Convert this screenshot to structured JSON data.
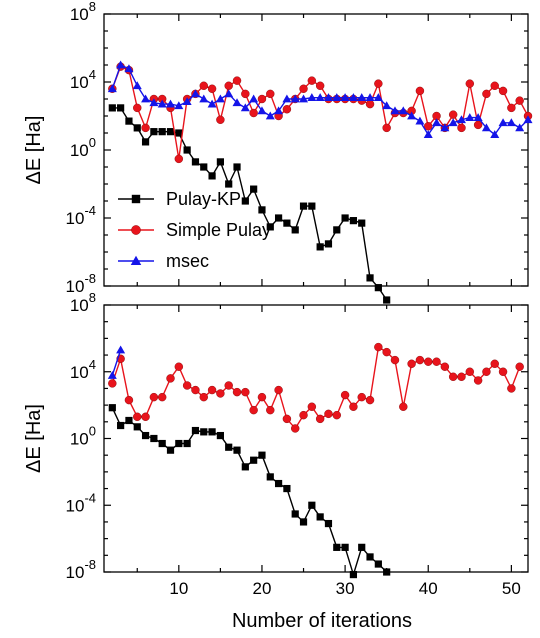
{
  "chart_data": [
    {
      "type": "line",
      "panel": "top",
      "ylabel": "ΔE [Ha]",
      "xlabel": "",
      "yscale": "log",
      "xlim": [
        1,
        52
      ],
      "ylim": [
        1e-08,
        100000000.0
      ],
      "yticks": [
        {
          "value": 1e-08,
          "base": "10",
          "exp": "-8"
        },
        {
          "value": 0.0001,
          "base": "10",
          "exp": "-4"
        },
        {
          "value": 1,
          "base": "10",
          "exp": "0"
        },
        {
          "value": 10000.0,
          "base": "10",
          "exp": "4"
        },
        {
          "value": 100000000.0,
          "base": "10",
          "exp": "8"
        }
      ],
      "xticks": [
        10,
        20,
        30,
        40,
        50
      ],
      "show_x_tick_labels": false,
      "legend_position": "bottom-left",
      "series": [
        {
          "name": "Pulay-KP",
          "color": "#000000",
          "marker": "square",
          "x": [
            2,
            3,
            4,
            5,
            6,
            7,
            8,
            9,
            10,
            11,
            12,
            13,
            14,
            15,
            16,
            17,
            18,
            19,
            20,
            21,
            22,
            23,
            24,
            25,
            26,
            27,
            28,
            29,
            30,
            31,
            32,
            33,
            34,
            35
          ],
          "y": [
            300,
            300,
            50,
            20,
            3,
            12,
            12,
            12,
            10,
            1,
            0.2,
            0.1,
            0.03,
            0.2,
            0.01,
            0.1,
            0.001,
            0.005,
            0.0003,
            3e-05,
            0.0001,
            5e-05,
            2e-05,
            0.0005,
            0.0005,
            2e-06,
            3e-06,
            2e-05,
            0.0001,
            7e-05,
            5e-05,
            3e-08,
            8e-09,
            1.5e-09
          ]
        },
        {
          "name": "Simple Pulay",
          "color": "#e8141c",
          "marker": "circle",
          "x": [
            2,
            3,
            4,
            5,
            6,
            7,
            8,
            9,
            10,
            11,
            12,
            13,
            14,
            15,
            16,
            17,
            18,
            19,
            20,
            21,
            22,
            23,
            24,
            25,
            26,
            27,
            28,
            29,
            30,
            31,
            32,
            33,
            34,
            35,
            36,
            37,
            38,
            39,
            40,
            41,
            42,
            43,
            44,
            45,
            46,
            47,
            48,
            49,
            50,
            51,
            52
          ],
          "y": [
            4000,
            80000,
            50000,
            300,
            20,
            1000,
            1000,
            300,
            0.3,
            1000,
            2000,
            6000,
            4000,
            60,
            6000,
            12000,
            2000,
            150,
            1000,
            2000,
            100,
            250,
            1000,
            4000,
            12000,
            6000,
            1000,
            1000,
            1000,
            1000,
            800,
            500,
            8000,
            20,
            150,
            150,
            200,
            3000,
            25,
            100,
            20,
            120,
            20,
            8000,
            30,
            2000,
            6000,
            3000,
            300,
            800,
            100
          ]
        },
        {
          "name": "msec",
          "color": "#1414e8",
          "marker": "triangle",
          "x": [
            2,
            3,
            4,
            5,
            6,
            7,
            8,
            9,
            10,
            11,
            12,
            13,
            14,
            15,
            16,
            17,
            18,
            19,
            20,
            21,
            22,
            23,
            24,
            25,
            26,
            27,
            28,
            29,
            30,
            31,
            32,
            33,
            34,
            35,
            36,
            37,
            38,
            39,
            40,
            41,
            42,
            43,
            44,
            45,
            46,
            47,
            48,
            49,
            50,
            51,
            52
          ],
          "y": [
            4000,
            100000,
            60000,
            6000,
            1000,
            600,
            500,
            500,
            400,
            700,
            2000,
            1000,
            500,
            1000,
            2000,
            600,
            300,
            1000,
            200,
            100,
            200,
            1000,
            1000,
            1000,
            1200,
            1200,
            1200,
            1200,
            1200,
            1200,
            1200,
            1200,
            1200,
            400,
            200,
            200,
            100,
            50,
            8,
            40,
            20,
            40,
            60,
            80,
            80,
            20,
            8,
            40,
            40,
            20,
            60
          ]
        }
      ]
    },
    {
      "type": "line",
      "panel": "bottom",
      "ylabel": "ΔE [Ha]",
      "xlabel": "Number of iterations",
      "yscale": "log",
      "xlim": [
        1,
        52
      ],
      "ylim": [
        1e-08,
        100000000.0
      ],
      "yticks": [
        {
          "value": 1e-08,
          "base": "10",
          "exp": "-8"
        },
        {
          "value": 0.0001,
          "base": "10",
          "exp": "-4"
        },
        {
          "value": 1,
          "base": "10",
          "exp": "0"
        },
        {
          "value": 10000.0,
          "base": "10",
          "exp": "4"
        },
        {
          "value": 100000000.0,
          "base": "10",
          "exp": "8"
        }
      ],
      "xticks": [
        10,
        20,
        30,
        40,
        50
      ],
      "show_x_tick_labels": true,
      "series": [
        {
          "name": "Pulay-KP",
          "color": "#000000",
          "marker": "square",
          "x": [
            2,
            3,
            4,
            5,
            6,
            7,
            8,
            9,
            10,
            11,
            12,
            13,
            14,
            15,
            16,
            17,
            18,
            19,
            20,
            21,
            22,
            23,
            24,
            25,
            26,
            27,
            28,
            29,
            30,
            31,
            32,
            33,
            34,
            35
          ],
          "y": [
            70,
            6,
            12,
            5,
            1.5,
            1,
            0.5,
            0.2,
            0.5,
            0.5,
            3,
            2.5,
            2.5,
            1.5,
            0.3,
            0.2,
            0.02,
            0.05,
            0.1,
            0.005,
            0.002,
            0.001,
            3e-05,
            1e-05,
            0.0001,
            2e-05,
            8e-06,
            3e-07,
            3e-07,
            7e-09,
            3e-07,
            8e-08,
            3e-08,
            1e-08
          ]
        },
        {
          "name": "Simple Pulay",
          "color": "#e8141c",
          "marker": "circle",
          "x": [
            2,
            3,
            4,
            5,
            6,
            7,
            8,
            9,
            10,
            11,
            12,
            13,
            14,
            15,
            16,
            17,
            18,
            19,
            20,
            21,
            22,
            23,
            24,
            25,
            26,
            27,
            28,
            29,
            30,
            31,
            32,
            33,
            34,
            35,
            36,
            37,
            38,
            39,
            40,
            41,
            42,
            43,
            44,
            45,
            46,
            47,
            48,
            49,
            50,
            51
          ],
          "y": [
            2000,
            60000,
            200,
            20,
            20,
            300,
            300,
            4000,
            20000,
            1500,
            800,
            300,
            800,
            500,
            1500,
            600,
            600,
            50,
            300,
            50,
            800,
            15,
            4,
            25,
            80,
            15,
            30,
            25,
            400,
            80,
            300,
            200,
            300000,
            150000,
            50000,
            80,
            30000,
            50000,
            40000,
            40000,
            20000,
            5000,
            5000,
            10000,
            3000,
            10000,
            30000,
            10000,
            1000,
            20000
          ]
        },
        {
          "name": "msec",
          "color": "#1414e8",
          "marker": "triangle",
          "x": [
            2,
            3
          ],
          "y": [
            6000,
            200000
          ]
        }
      ]
    }
  ]
}
